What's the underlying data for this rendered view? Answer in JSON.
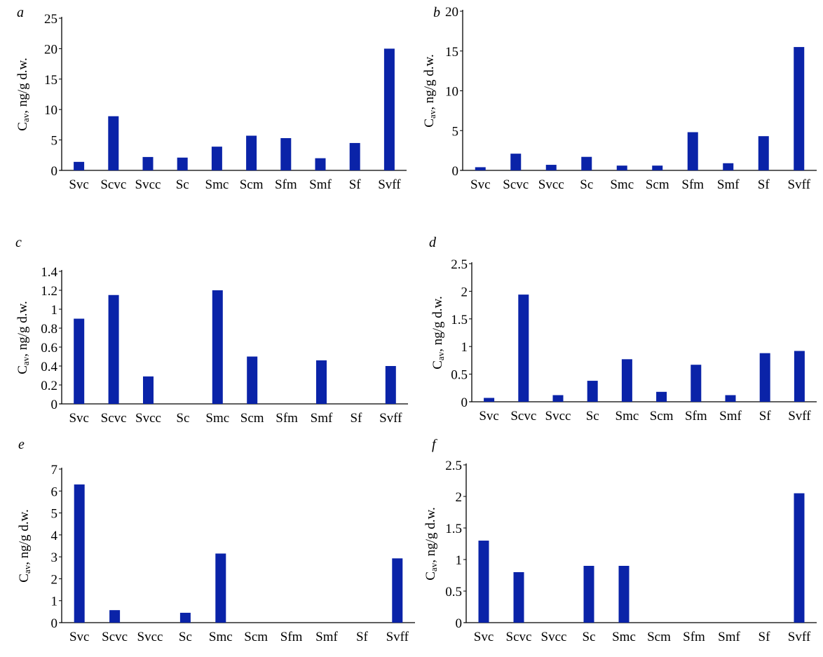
{
  "bar_color": "#0a23a8",
  "chart_data": [
    {
      "type": "bar",
      "panel": "a",
      "ylabel": "C_av, ng/g d.w.",
      "ylim": [
        0,
        25
      ],
      "yticks": [
        "0",
        "5",
        "10",
        "15",
        "20",
        "25"
      ],
      "categories": [
        "Svc",
        "Scvc",
        "Svcc",
        "Sc",
        "Smc",
        "Scm",
        "Sfm",
        "Smf",
        "Sf",
        "Svff"
      ],
      "values": [
        1.4,
        8.9,
        2.2,
        2.1,
        3.9,
        5.7,
        5.3,
        2.0,
        4.5,
        20.0
      ]
    },
    {
      "type": "bar",
      "panel": "b",
      "ylabel": "C_av, ng/g d.w.",
      "ylim": [
        0,
        20
      ],
      "yticks": [
        "0",
        "5",
        "10",
        "15",
        "20"
      ],
      "categories": [
        "Svc",
        "Scvc",
        "Svcc",
        "Sc",
        "Smc",
        "Scm",
        "Sfm",
        "Smf",
        "Sf",
        "Svff"
      ],
      "values": [
        0.4,
        2.1,
        0.7,
        1.7,
        0.6,
        0.6,
        4.8,
        0.9,
        4.3,
        15.5
      ]
    },
    {
      "type": "bar",
      "panel": "c",
      "ylabel": "C_av, ng/g d.w.",
      "ylim": [
        0,
        1.4
      ],
      "yticks": [
        "0",
        "0.2",
        "0.4",
        "0.6",
        "0.8",
        "1",
        "1.2",
        "1.4"
      ],
      "categories": [
        "Svc",
        "Scvc",
        "Svcc",
        "Sc",
        "Smc",
        "Scm",
        "Sfm",
        "Smf",
        "Sf",
        "Svff"
      ],
      "values": [
        0.9,
        1.15,
        0.29,
        0,
        1.2,
        0.5,
        0,
        0.46,
        0,
        0.4
      ]
    },
    {
      "type": "bar",
      "panel": "d",
      "ylabel": "C_av, ng/g d.w.",
      "ylim": [
        0,
        2.5
      ],
      "yticks": [
        "0",
        "0.5",
        "1",
        "1.5",
        "2",
        "2.5"
      ],
      "categories": [
        "Svc",
        "Scvc",
        "Svcc",
        "Sc",
        "Smc",
        "Scm",
        "Sfm",
        "Smf",
        "Sf",
        "Svff"
      ],
      "values": [
        0.07,
        1.94,
        0.12,
        0.38,
        0.77,
        0.18,
        0.67,
        0.12,
        0.88,
        0.92
      ]
    },
    {
      "type": "bar",
      "panel": "e",
      "ylabel": "C_av, ng/g d.w.",
      "ylim": [
        0,
        7
      ],
      "yticks": [
        "0",
        "1",
        "2",
        "3",
        "4",
        "5",
        "6",
        "7"
      ],
      "categories": [
        "Svc",
        "Scvc",
        "Svcc",
        "Sc",
        "Smc",
        "Scm",
        "Sfm",
        "Smf",
        "Sf",
        "Svff"
      ],
      "values": [
        6.3,
        0.57,
        0,
        0.45,
        3.15,
        0,
        0,
        0,
        0,
        2.93
      ]
    },
    {
      "type": "bar",
      "panel": "f",
      "ylabel": "C_av, ng/g d.w.",
      "ylim": [
        0,
        2.5
      ],
      "yticks": [
        "0",
        "0.5",
        "1",
        "1.5",
        "2",
        "2.5"
      ],
      "categories": [
        "Svc",
        "Scvc",
        "Svcc",
        "Sc",
        "Smc",
        "Scm",
        "Sfm",
        "Smf",
        "Sf",
        "Svff"
      ],
      "values": [
        1.3,
        0.8,
        0,
        0.9,
        0.9,
        0,
        0,
        0,
        0,
        2.05
      ]
    }
  ]
}
